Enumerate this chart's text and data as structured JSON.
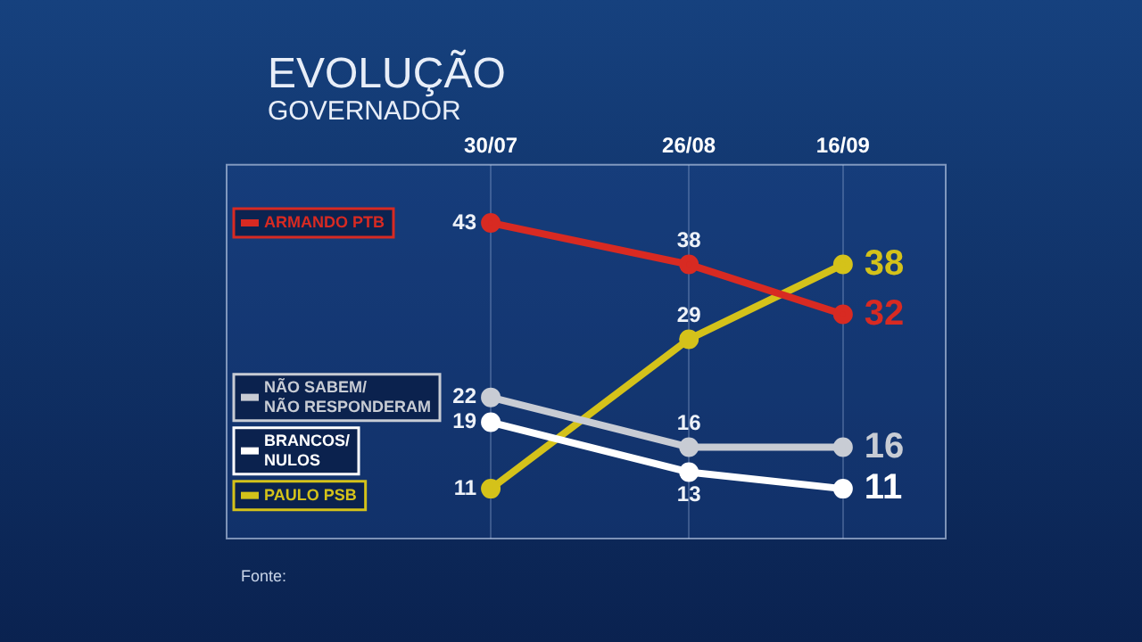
{
  "chart_data": {
    "type": "line",
    "title": "EVOLUÇÃO",
    "subtitle": "GOVERNADOR",
    "x": [
      "--07-30",
      "--08-26",
      "--09-16"
    ],
    "xlim": [
      "--06-24",
      "--09-30"
    ],
    "legend": "left",
    "xticks": [
      {
        "value": "--07-30",
        "label": "30/07"
      },
      {
        "value": "--08-26",
        "label": "26/08"
      },
      {
        "value": "--09-16",
        "label": "16/09"
      }
    ],
    "series": [
      {
        "name": "ARMANDO PTB",
        "color": "#d82a22",
        "values": [
          43,
          38,
          32
        ]
      },
      {
        "name": "NÃO SABEM/NÃO RESPONDERAM",
        "color": "#c8ccd4",
        "values": [
          22,
          16,
          16
        ]
      },
      {
        "name": "BRANCOS/NULOS",
        "color": "#ffffff",
        "values": [
          19,
          13,
          11
        ]
      },
      {
        "name": "PAULO PSB",
        "color": "#d4c21a",
        "values": [
          11,
          29,
          38
        ]
      }
    ],
    "data_labels": true,
    "grid": "x",
    "tick_labels": "x",
    "marker": "circle",
    "line_style": "solid",
    "annotations": [
      "Fonte:"
    ]
  }
}
